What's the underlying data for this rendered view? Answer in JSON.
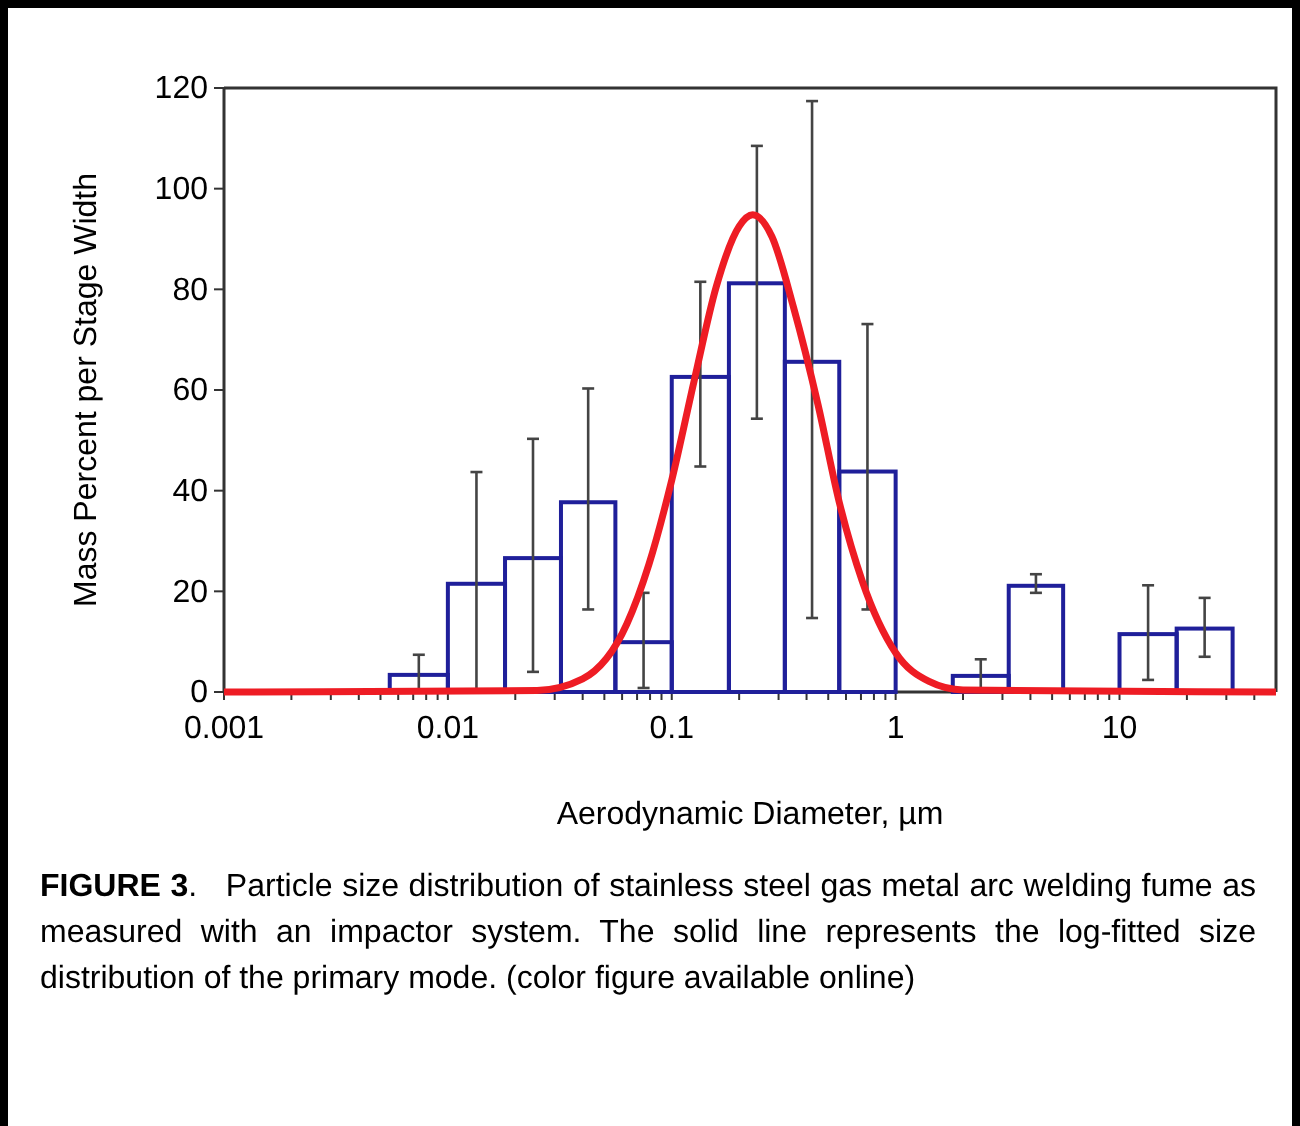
{
  "chart_data": {
    "type": "histogram",
    "xlabel": "Aerodynamic Diameter, µm",
    "ylabel": "Mass Percent per Stage Width",
    "log": "x",
    "xlim": [
      0.001,
      50
    ],
    "ylim": [
      0,
      120
    ],
    "xticks": [
      0.001,
      {
        "value": 0.002,
        "label": null
      },
      {
        "value": 0.003,
        "label": null
      },
      {
        "value": 0.004,
        "label": null
      },
      {
        "value": 0.005,
        "label": null
      },
      {
        "value": 0.006,
        "label": null
      },
      {
        "value": 0.007,
        "label": null
      },
      {
        "value": 0.008,
        "label": null
      },
      {
        "value": 0.009,
        "label": null
      },
      0.01,
      {
        "value": 0.02,
        "label": null
      },
      {
        "value": 0.03,
        "label": null
      },
      {
        "value": 0.04,
        "label": null
      },
      {
        "value": 0.05,
        "label": null
      },
      {
        "value": 0.06,
        "label": null
      },
      {
        "value": 0.07,
        "label": null
      },
      {
        "value": 0.08,
        "label": null
      },
      {
        "value": 0.09,
        "label": null
      },
      0.1,
      {
        "value": 0.2,
        "label": null
      },
      {
        "value": 0.3,
        "label": null
      },
      {
        "value": 0.4,
        "label": null
      },
      {
        "value": 0.5,
        "label": null
      },
      {
        "value": 0.6,
        "label": null
      },
      {
        "value": 0.7,
        "label": null
      },
      {
        "value": 0.8,
        "label": null
      },
      {
        "value": 0.9,
        "label": null
      },
      1,
      {
        "value": 2,
        "label": null
      },
      {
        "value": 3,
        "label": null
      },
      {
        "value": 4,
        "label": null
      },
      {
        "value": 5,
        "label": null
      },
      {
        "value": 6,
        "label": null
      },
      {
        "value": 7,
        "label": null
      },
      {
        "value": 8,
        "label": null
      },
      {
        "value": 9,
        "label": null
      },
      10,
      {
        "value": 20,
        "label": null
      },
      {
        "value": 30,
        "label": null
      },
      {
        "value": 40,
        "label": null
      }
    ],
    "yticks": [
      0,
      20,
      40,
      60,
      80,
      100,
      120
    ],
    "bins": [
      0.0055,
      0.01,
      0.018,
      0.032,
      0.056,
      0.1,
      0.18,
      0.32,
      0.56,
      1.0,
      1.8,
      3.2,
      5.6,
      10,
      18,
      32
    ],
    "series": [
      {
        "color": "#1f1f9a",
        "values": [
          3.4,
          21.5,
          26.6,
          37.7,
          9.9,
          62.6,
          81.2,
          65.6,
          43.8,
          null,
          3.2,
          21.1,
          null,
          11.5,
          12.6
        ],
        "errors": [
          [
            0,
            7.4
          ],
          [
            0,
            43.7
          ],
          [
            4,
            50.3
          ],
          [
            16.4,
            60.3
          ],
          [
            0.8,
            19.7
          ],
          [
            44.8,
            81.5
          ],
          [
            54.3,
            108.5
          ],
          [
            14.7,
            117.4
          ],
          [
            16.4,
            73.1
          ],
          null,
          [
            0,
            6.5
          ],
          [
            19.7,
            23.4
          ],
          null,
          [
            2.4,
            21.2
          ],
          [
            7,
            18.7
          ]
        ]
      },
      {
        "type": "line",
        "color": "#ee1c24",
        "x": [
          0.001,
          0.025,
          0.04,
          0.063,
          0.079,
          0.1,
          0.126,
          0.158,
          0.2,
          0.23,
          0.28,
          0.35,
          0.45,
          0.56,
          0.71,
          1,
          1.41,
          2,
          50
        ],
        "values": [
          0,
          0.3,
          2.6,
          13.5,
          25.3,
          42.1,
          61.9,
          80.5,
          92.5,
          94.8,
          90.5,
          76.4,
          57.1,
          37.7,
          22.0,
          7.8,
          2.1,
          0.4,
          0
        ]
      }
    ],
    "annotations": [
      "FIGURE 3",
      ".   Particle size distribution of stainless steel gas metal arc welding fume as measured with an impactor system. The solid line represents the log-fitted size distribution of the primary mode. (color figure available online)"
    ]
  }
}
